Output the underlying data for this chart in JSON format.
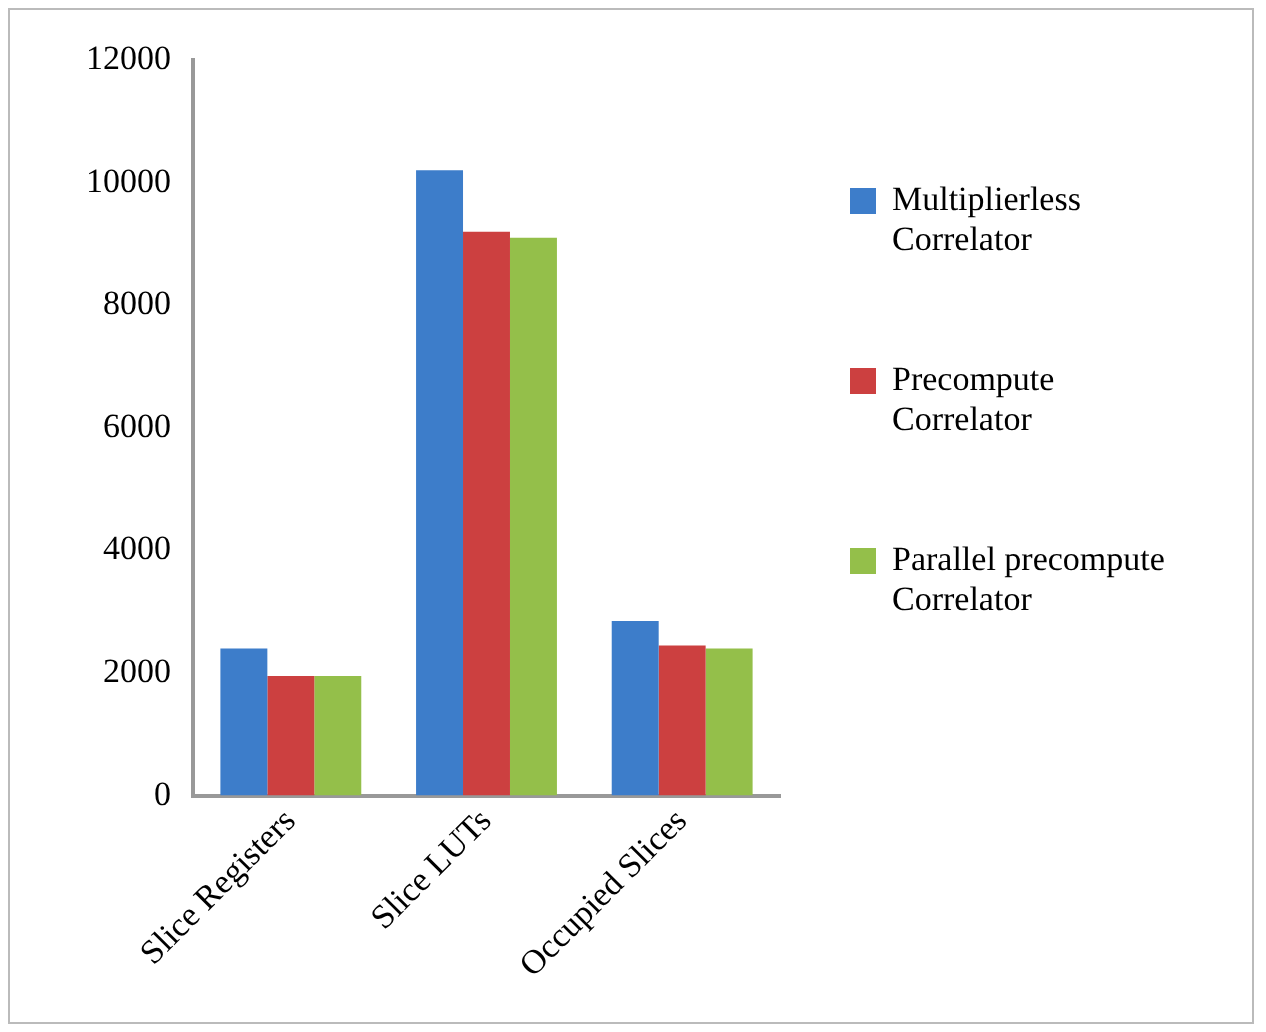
{
  "chart_data": {
    "type": "bar",
    "categories": [
      "Slice Registers",
      "Slice LUTs",
      "Occupied Slices"
    ],
    "series": [
      {
        "name": "Multiplierless Correlator",
        "color": "#3d7dca",
        "values": [
          2400,
          10200,
          2850
        ]
      },
      {
        "name": "Precompute Correlator",
        "color": "#cc4040",
        "values": [
          1950,
          9200,
          2450
        ]
      },
      {
        "name": "Parallel precompute Correlator",
        "color": "#94bf4a",
        "values": [
          1950,
          9100,
          2400
        ]
      }
    ],
    "ylim": [
      0,
      12000
    ],
    "yticks": [
      0,
      2000,
      4000,
      6000,
      8000,
      10000,
      12000
    ],
    "grid": false,
    "legend": "right"
  }
}
